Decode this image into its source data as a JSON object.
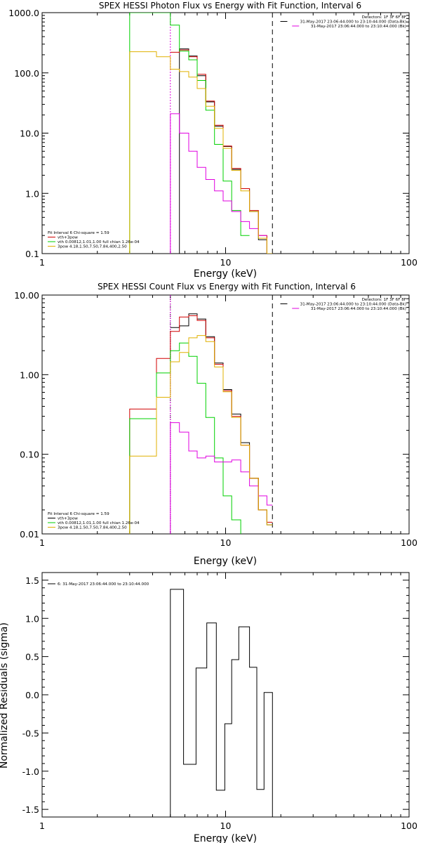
{
  "chart_data": [
    {
      "type": "line",
      "title": "SPEX HESSI Photon Flux vs Energy with Fit Function, Interval 6",
      "xlabel": "Energy (keV)",
      "ylabel": "",
      "x_scale": "log",
      "y_scale": "log",
      "xlim": [
        1,
        100
      ],
      "ylim": [
        0.1,
        1000
      ],
      "x_ticks": [
        {
          "v": 1,
          "label": "1"
        },
        {
          "v": 10,
          "label": "10"
        },
        {
          "v": 100,
          "label": "100"
        }
      ],
      "y_ticks": [
        {
          "v": 0.1,
          "label": "0.1"
        },
        {
          "v": 1,
          "label": "1.0"
        },
        {
          "v": 10,
          "label": "10.0"
        },
        {
          "v": 100,
          "label": "100.0"
        },
        {
          "v": 1000,
          "label": "1000.0"
        }
      ],
      "info_lines": [
        "Detectors: 1F 3F 6F 8F",
        "31-May-2017 23:06:44.000 to 23:10:44.000 (Data-Bk)",
        "31-May-2017 23:06:44.000 to 23:10:44.000 (Bk)"
      ],
      "info_colors": [
        "",
        "#000000",
        "#e000e0"
      ],
      "legend_lines": [
        "Fit Interval 6   Chi-square = 1.59",
        "vth+3pow",
        "vth 0.00812,1.01,1.00  full chian 1.26e-04",
        "3pow 4.18,1.50,7.50,7.84,400,2.50"
      ],
      "legend_colors": [
        "",
        "#d00000",
        "#00d000",
        "#e0b000"
      ],
      "vlines": [
        {
          "x": 5.0,
          "color": "#e000e0",
          "dash": "2,2"
        },
        {
          "x": 18.0,
          "color": "#000000",
          "dash": "7,5"
        }
      ],
      "series": [
        {
          "color": "#000000",
          "x": [
            5,
            5.6,
            5.6,
            6.3,
            6.3,
            7,
            7,
            7.8,
            7.8,
            8.7,
            8.7,
            9.7,
            9.7,
            10.8,
            10.8,
            12.1,
            12.1,
            13.5,
            13.5,
            15.1,
            15.1,
            16.8,
            16.8,
            18
          ],
          "y": [
            0.1,
            0.1,
            250,
            250,
            190,
            190,
            90,
            90,
            33,
            33,
            13,
            13,
            6,
            6,
            2.5,
            2.5,
            1.2,
            1.2,
            0.5,
            0.5,
            0.17,
            0.17,
            0.1,
            0.1
          ]
        },
        {
          "color": "#d00000",
          "x": [
            5,
            5.6,
            5.6,
            6.3,
            6.3,
            7,
            7,
            7.8,
            7.8,
            8.7,
            8.7,
            9.7,
            9.7,
            10.8,
            10.8,
            12.1,
            12.1,
            13.5,
            13.5,
            15.1,
            15.1,
            16.8,
            16.8,
            18
          ],
          "y": [
            220,
            220,
            240,
            240,
            185,
            185,
            95,
            95,
            34,
            34,
            13.5,
            13.5,
            6.1,
            6.1,
            2.6,
            2.6,
            1.2,
            1.2,
            0.52,
            0.52,
            0.2,
            0.2,
            0.1,
            0.1
          ]
        },
        {
          "color": "#00d000",
          "x": [
            3,
            3,
            4.2,
            4.2,
            5,
            5,
            5.6,
            5.6,
            6.3,
            6.3,
            7,
            7,
            7.8,
            7.8,
            8.7,
            8.7,
            9.7,
            9.7,
            10.8,
            10.8,
            12.1,
            12.1,
            13.5
          ],
          "y": [
            0.1,
            1000,
            1000,
            1000,
            1000,
            620,
            620,
            230,
            230,
            165,
            165,
            75,
            75,
            24,
            24,
            6.5,
            6.5,
            1.6,
            1.6,
            0.52,
            0.52,
            0.2,
            0.2
          ]
        },
        {
          "color": "#e000e0",
          "x": [
            5,
            5,
            5.6,
            5.6,
            6.3,
            6.3,
            7,
            7,
            7.8,
            7.8,
            8.7,
            8.7,
            9.7,
            9.7,
            10.8,
            10.8,
            12.1,
            12.1,
            13.5,
            13.5,
            15.1,
            15.1,
            16.8
          ],
          "y": [
            0.1,
            21,
            21,
            10,
            10,
            5,
            5,
            2.7,
            2.7,
            1.7,
            1.7,
            1.1,
            1.1,
            0.75,
            0.75,
            0.5,
            0.5,
            0.34,
            0.34,
            0.26,
            0.26,
            0.2,
            0.2
          ]
        },
        {
          "color": "#e0b000",
          "x": [
            3,
            3,
            4.2,
            4.2,
            5,
            5,
            5.6,
            5.6,
            6.3,
            6.3,
            7,
            7,
            7.8,
            7.8,
            8.7,
            8.7,
            9.7,
            9.7,
            10.8,
            10.8,
            12.1,
            12.1,
            13.5,
            13.5,
            15.1,
            15.1,
            16.8,
            16.8,
            18
          ],
          "y": [
            0.1,
            225,
            225,
            185,
            185,
            115,
            115,
            105,
            105,
            85,
            85,
            55,
            55,
            28,
            28,
            12,
            12,
            5.6,
            5.6,
            2.4,
            2.4,
            1.1,
            1.1,
            0.5,
            0.5,
            0.18,
            0.18,
            0.1,
            0.1
          ]
        }
      ]
    },
    {
      "type": "line",
      "title": "SPEX HESSI Count Flux vs Energy with Fit Function, Interval 6",
      "xlabel": "Energy (keV)",
      "ylabel": "",
      "x_scale": "log",
      "y_scale": "log",
      "xlim": [
        1,
        100
      ],
      "ylim": [
        0.01,
        10
      ],
      "x_ticks": [
        {
          "v": 1,
          "label": "1"
        },
        {
          "v": 10,
          "label": "10"
        },
        {
          "v": 100,
          "label": "100"
        }
      ],
      "y_ticks": [
        {
          "v": 0.01,
          "label": "0.01"
        },
        {
          "v": 0.1,
          "label": "0.10"
        },
        {
          "v": 1,
          "label": "1.00"
        },
        {
          "v": 10,
          "label": "10.00"
        }
      ],
      "info_lines": [
        "Detectors: 1F 3F 6F 8F",
        "31-May-2017 23:06:44.000 to 23:10:44.000 (Data-Bk)",
        "31-May-2017 23:06:44.000 to 23:10:44.000 (Bk)"
      ],
      "info_colors": [
        "",
        "#000000",
        "#e000e0"
      ],
      "legend_lines": [
        "Fit Interval 6   Chi-square = 1.59",
        "vth+3pow",
        "vth 0.00812,1.01,1.00  full chian 1.26e-04",
        "3pow 4.18,1.50,7.50,7.84,400,2.50"
      ],
      "legend_colors": [
        "",
        "#000000",
        "#00d000",
        "#e0b000"
      ],
      "vlines": [
        {
          "x": 5.0,
          "color": "#000000",
          "dash": "1,2"
        },
        {
          "x": 5.0,
          "color": "#e000e0",
          "dash": "2,2"
        },
        {
          "x": 18.0,
          "color": "#000000",
          "dash": "7,5"
        }
      ],
      "series": [
        {
          "color": "#000000",
          "x": [
            5,
            5.6,
            5.6,
            6.3,
            6.3,
            7,
            7,
            7.8,
            7.8,
            8.7,
            8.7,
            9.7,
            9.7,
            10.8,
            10.8,
            12.1,
            12.1,
            13.5,
            13.5,
            15.1,
            15.1,
            16.8,
            16.8,
            18
          ],
          "y": [
            3.9,
            3.9,
            4.1,
            4.1,
            5.8,
            5.8,
            5.0,
            5.0,
            3.0,
            3.0,
            1.4,
            1.4,
            0.65,
            0.65,
            0.32,
            0.32,
            0.14,
            0.14,
            0.05,
            0.05,
            0.02,
            0.02,
            0.013,
            0.013
          ]
        },
        {
          "color": "#d00000",
          "x": [
            3,
            3,
            4.2,
            4.2,
            5,
            5,
            5.6,
            5.6,
            6.3,
            6.3,
            7,
            7,
            7.8,
            7.8,
            8.7,
            8.7,
            9.7,
            9.7,
            10.8,
            10.8,
            12.1,
            12.1,
            13.5,
            13.5,
            15.1,
            15.1,
            16.8,
            16.8,
            18
          ],
          "y": [
            0.01,
            0.37,
            0.37,
            1.6,
            1.6,
            3.5,
            3.5,
            5.3,
            5.3,
            5.5,
            5.5,
            4.8,
            4.8,
            2.9,
            2.9,
            1.35,
            1.35,
            0.63,
            0.63,
            0.3,
            0.3,
            0.13,
            0.13,
            0.05,
            0.05,
            0.02,
            0.02,
            0.014,
            0.014
          ]
        },
        {
          "color": "#00d000",
          "x": [
            3,
            3,
            4.2,
            4.2,
            5,
            5,
            5.6,
            5.6,
            6.3,
            6.3,
            7,
            7,
            7.8,
            7.8,
            8.7,
            8.7,
            9.7,
            9.7,
            10.8,
            10.8,
            12.1,
            12.1
          ],
          "y": [
            0.01,
            0.28,
            0.28,
            1.05,
            1.05,
            2.0,
            2.0,
            2.5,
            2.5,
            1.7,
            1.7,
            0.78,
            0.78,
            0.29,
            0.29,
            0.09,
            0.09,
            0.03,
            0.03,
            0.015,
            0.015,
            0.01
          ]
        },
        {
          "color": "#e000e0",
          "x": [
            5,
            5,
            5.6,
            5.6,
            6.3,
            6.3,
            7,
            7,
            7.8,
            7.8,
            8.7,
            8.7,
            9.7,
            9.7,
            10.8,
            10.8,
            12.1,
            12.1,
            13.5,
            13.5,
            15.1,
            15.1,
            16.8,
            16.8,
            18
          ],
          "y": [
            0.01,
            0.25,
            0.25,
            0.19,
            0.19,
            0.11,
            0.11,
            0.09,
            0.09,
            0.095,
            0.095,
            0.08,
            0.08,
            0.08,
            0.08,
            0.085,
            0.085,
            0.06,
            0.06,
            0.04,
            0.04,
            0.03,
            0.03,
            0.023,
            0.023
          ]
        },
        {
          "color": "#e0b000",
          "x": [
            3,
            3,
            4.2,
            4.2,
            5,
            5,
            5.6,
            5.6,
            6.3,
            6.3,
            7,
            7,
            7.8,
            7.8,
            8.7,
            8.7,
            9.7,
            9.7,
            10.8,
            10.8,
            12.1,
            12.1,
            13.5,
            13.5,
            15.1,
            15.1,
            16.8,
            16.8,
            18
          ],
          "y": [
            0.01,
            0.095,
            0.095,
            0.52,
            0.52,
            1.45,
            1.45,
            1.9,
            1.9,
            2.9,
            2.9,
            3.1,
            3.1,
            2.6,
            2.6,
            1.25,
            1.25,
            0.61,
            0.61,
            0.29,
            0.29,
            0.13,
            0.13,
            0.05,
            0.05,
            0.02,
            0.02,
            0.013,
            0.013
          ]
        }
      ]
    },
    {
      "type": "line",
      "title": "",
      "xlabel": "Energy (keV)",
      "ylabel": "Normalized Residuals (sigma)",
      "x_scale": "log",
      "y_scale": "linear",
      "xlim": [
        1,
        100
      ],
      "ylim": [
        -1.6,
        1.6
      ],
      "x_ticks": [
        {
          "v": 1,
          "label": "1"
        },
        {
          "v": 10,
          "label": "10"
        },
        {
          "v": 100,
          "label": "100"
        }
      ],
      "y_ticks": [
        {
          "v": -1.5,
          "label": "-1.5"
        },
        {
          "v": -1.0,
          "label": "-1.0"
        },
        {
          "v": -0.5,
          "label": "-0.5"
        },
        {
          "v": 0,
          "label": "0.0"
        },
        {
          "v": 0.5,
          "label": "0.5"
        },
        {
          "v": 1.0,
          "label": "1.0"
        },
        {
          "v": 1.5,
          "label": "1.5"
        }
      ],
      "info_lines": [],
      "info_colors": [],
      "legend_lines": [
        "6: 31-May-2017 23:06:44.000 to 23:10:44.000"
      ],
      "legend_colors": [
        "#000000"
      ],
      "legend_position": "top-left",
      "vlines": [],
      "series": [
        {
          "color": "#000000",
          "x": [
            5,
            5,
            5.9,
            5.9,
            6.9,
            6.9,
            7.9,
            7.9,
            8.9,
            8.9,
            9.9,
            9.9,
            10.8,
            10.8,
            11.8,
            11.8,
            13.5,
            13.5,
            14.8,
            14.8,
            16.2,
            16.2,
            18,
            18
          ],
          "y": [
            -1.6,
            1.38,
            1.38,
            -0.91,
            -0.91,
            0.35,
            0.35,
            0.94,
            0.94,
            -1.25,
            -1.25,
            -0.38,
            -0.38,
            0.46,
            0.46,
            0.89,
            0.89,
            0.36,
            0.36,
            -1.24,
            -1.24,
            0.03,
            0.03,
            -1.6
          ]
        }
      ]
    }
  ]
}
